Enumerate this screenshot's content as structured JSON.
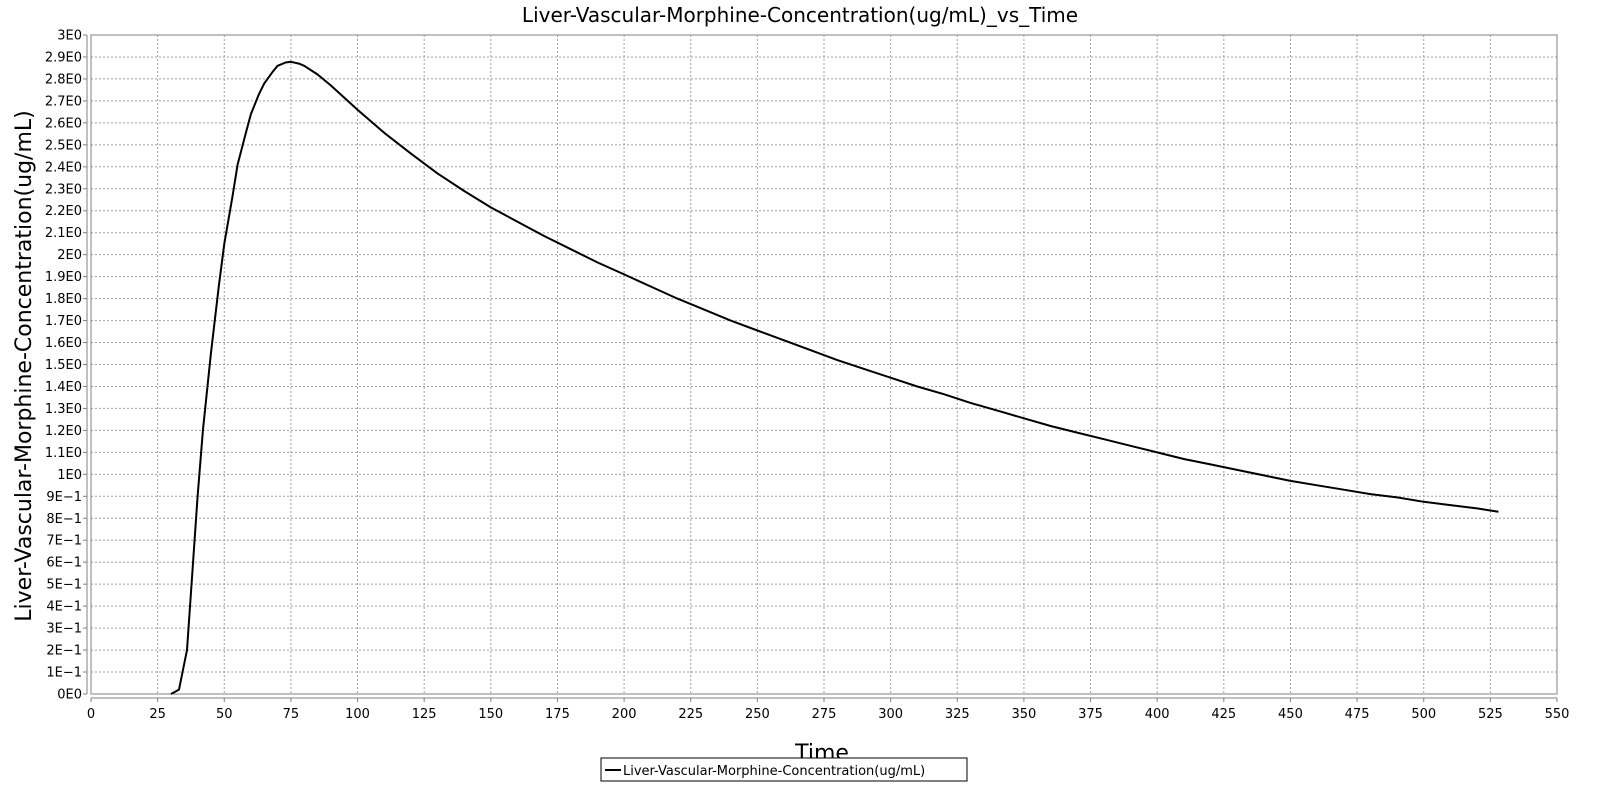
{
  "chart_data": {
    "type": "line",
    "title": "Liver-Vascular-Morphine-Concentration(ug/mL)_vs_Time",
    "xlabel": "Time",
    "ylabel": "Liver-Vascular-Morphine-Concentration(ug/mL)",
    "xlim": [
      0,
      550
    ],
    "ylim": [
      0,
      3
    ],
    "grid": true,
    "legend_position": "bottom",
    "x_ticks": [
      0,
      25,
      50,
      75,
      100,
      125,
      150,
      175,
      200,
      225,
      250,
      275,
      300,
      325,
      350,
      375,
      400,
      425,
      450,
      475,
      500,
      525,
      550
    ],
    "x_tick_labels": [
      "0",
      "25",
      "50",
      "75",
      "100",
      "125",
      "150",
      "175",
      "200",
      "225",
      "250",
      "275",
      "300",
      "325",
      "350",
      "375",
      "400",
      "425",
      "450",
      "475",
      "500",
      "525",
      "550"
    ],
    "y_ticks": [
      0,
      0.1,
      0.2,
      0.3,
      0.4,
      0.5,
      0.6,
      0.7,
      0.8,
      0.9,
      1.0,
      1.1,
      1.2,
      1.3,
      1.4,
      1.5,
      1.6,
      1.7,
      1.8,
      1.9,
      2.0,
      2.1,
      2.2,
      2.3,
      2.4,
      2.5,
      2.6,
      2.7,
      2.8,
      2.9,
      3.0
    ],
    "y_tick_labels": [
      "0E0",
      "1E−1",
      "2E−1",
      "3E−1",
      "4E−1",
      "5E−1",
      "6E−1",
      "7E−1",
      "8E−1",
      "9E−1",
      "1E0",
      "1.1E0",
      "1.2E0",
      "1.3E0",
      "1.4E0",
      "1.5E0",
      "1.6E0",
      "1.7E0",
      "1.8E0",
      "1.9E0",
      "2E0",
      "2.1E0",
      "2.2E0",
      "2.3E0",
      "2.4E0",
      "2.5E0",
      "2.6E0",
      "2.7E0",
      "2.8E0",
      "2.9E0",
      "3E0"
    ],
    "series": [
      {
        "name": "Liver-Vascular-Morphine-Concentration(ug/mL)",
        "color": "#000000",
        "x": [
          30,
          33,
          36,
          38,
          40,
          42,
          45,
          48,
          50,
          53,
          55,
          58,
          60,
          63,
          65,
          68,
          70,
          73,
          75,
          78,
          80,
          85,
          90,
          95,
          100,
          110,
          120,
          130,
          140,
          150,
          160,
          170,
          180,
          190,
          200,
          210,
          220,
          230,
          240,
          250,
          260,
          270,
          280,
          290,
          300,
          310,
          320,
          330,
          340,
          350,
          360,
          370,
          380,
          390,
          400,
          410,
          420,
          430,
          440,
          450,
          460,
          470,
          480,
          490,
          500,
          510,
          520,
          528
        ],
        "y": [
          0.0,
          0.02,
          0.2,
          0.55,
          0.9,
          1.2,
          1.55,
          1.86,
          2.05,
          2.26,
          2.41,
          2.55,
          2.64,
          2.73,
          2.78,
          2.83,
          2.86,
          2.875,
          2.878,
          2.87,
          2.86,
          2.82,
          2.77,
          2.715,
          2.66,
          2.555,
          2.46,
          2.37,
          2.29,
          2.215,
          2.15,
          2.085,
          2.025,
          1.965,
          1.91,
          1.855,
          1.8,
          1.75,
          1.7,
          1.655,
          1.61,
          1.565,
          1.52,
          1.48,
          1.44,
          1.4,
          1.365,
          1.325,
          1.29,
          1.255,
          1.22,
          1.19,
          1.16,
          1.13,
          1.1,
          1.07,
          1.045,
          1.02,
          0.995,
          0.97,
          0.95,
          0.93,
          0.91,
          0.895,
          0.875,
          0.86,
          0.845,
          0.83
        ]
      }
    ]
  }
}
